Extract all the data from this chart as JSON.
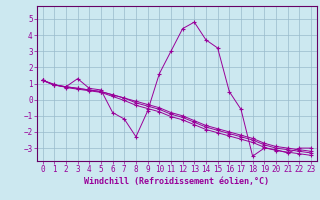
{
  "xlabel": "Windchill (Refroidissement éolien,°C)",
  "background_color": "#cce8f0",
  "grid_color": "#99bbcc",
  "line_color": "#990099",
  "spine_color": "#660066",
  "xlim": [
    -0.5,
    23.5
  ],
  "ylim": [
    -3.8,
    5.8
  ],
  "xticks": [
    0,
    1,
    2,
    3,
    4,
    5,
    6,
    7,
    8,
    9,
    10,
    11,
    12,
    13,
    14,
    15,
    16,
    17,
    18,
    19,
    20,
    21,
    22,
    23
  ],
  "yticks": [
    -3,
    -2,
    -1,
    0,
    1,
    2,
    3,
    4,
    5
  ],
  "series": [
    [
      1.2,
      0.9,
      0.8,
      1.3,
      0.7,
      0.6,
      -0.8,
      -1.2,
      -2.3,
      -0.7,
      1.6,
      3.0,
      4.4,
      4.8,
      3.7,
      3.2,
      0.5,
      -0.6,
      -3.5,
      -3.0,
      -3.1,
      -3.3,
      -3.0,
      -3.0
    ],
    [
      1.2,
      0.9,
      0.8,
      0.7,
      0.6,
      0.5,
      0.3,
      0.1,
      -0.2,
      -0.4,
      -0.6,
      -0.9,
      -1.1,
      -1.4,
      -1.7,
      -1.9,
      -2.1,
      -2.3,
      -2.5,
      -2.8,
      -3.0,
      -3.1,
      -3.2,
      -3.3
    ],
    [
      1.2,
      0.95,
      0.75,
      0.65,
      0.55,
      0.45,
      0.2,
      -0.05,
      -0.35,
      -0.55,
      -0.75,
      -1.05,
      -1.25,
      -1.55,
      -1.85,
      -2.05,
      -2.25,
      -2.45,
      -2.65,
      -2.95,
      -3.15,
      -3.25,
      -3.35,
      -3.45
    ],
    [
      1.2,
      0.9,
      0.8,
      0.7,
      0.6,
      0.5,
      0.3,
      0.1,
      -0.1,
      -0.3,
      -0.5,
      -0.8,
      -1.0,
      -1.3,
      -1.6,
      -1.8,
      -2.0,
      -2.2,
      -2.4,
      -2.7,
      -2.9,
      -3.0,
      -3.1,
      -3.2
    ]
  ],
  "tick_fontsize": 5.5,
  "label_fontsize": 6.0
}
